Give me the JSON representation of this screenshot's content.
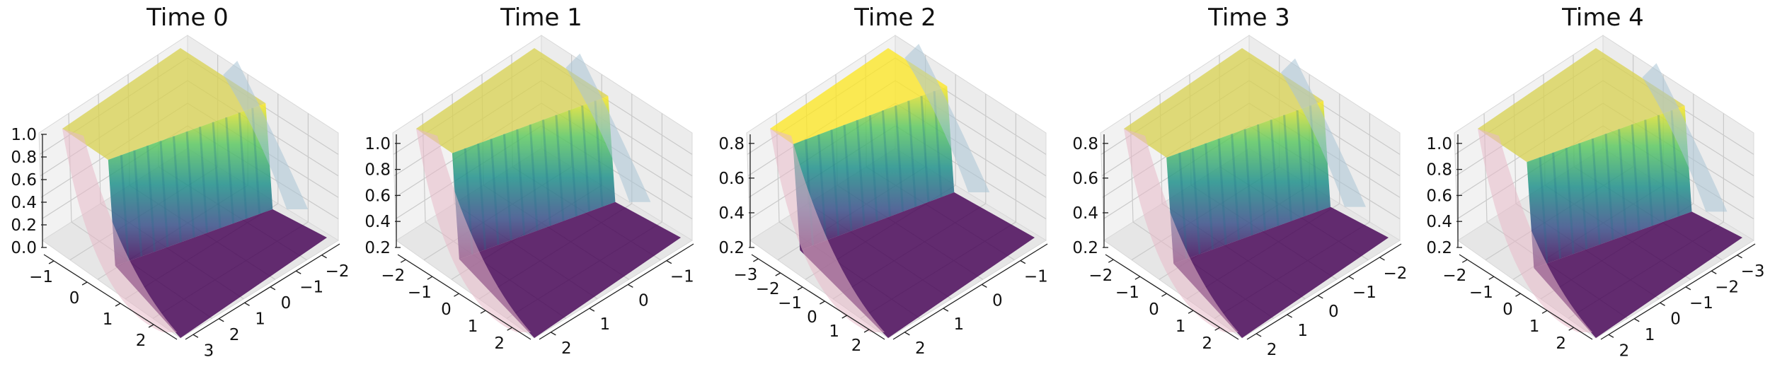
{
  "chart_data": [
    {
      "type": "surface",
      "title": "Time 0",
      "zticks": [
        "0.0",
        "0.2",
        "0.4",
        "0.6",
        "0.8",
        "1.0"
      ],
      "xticks": [
        "−1",
        "0",
        "1",
        "2"
      ],
      "yticks": [
        "−2",
        "−1",
        "0",
        "1",
        "2",
        "3"
      ],
      "front_corner": "right",
      "steps": [
        1.4,
        2.2
      ],
      "colors": {
        "low": "#440154",
        "high": "#d9d255",
        "shade": "#e8b9c9",
        "ghost": "#a9c4d6"
      }
    },
    {
      "type": "surface",
      "title": "Time 1",
      "zticks": [
        "0.2",
        "0.4",
        "0.6",
        "0.8",
        "1.0"
      ],
      "xticks": [
        "−2",
        "−1",
        "0",
        "1",
        "2"
      ],
      "yticks": [
        "−1",
        "0",
        "1",
        "2"
      ],
      "front_corner": "right",
      "steps": [
        1.1,
        1.8
      ],
      "colors": {
        "low": "#440154",
        "high": "#d9d255",
        "shade": "#e8b9c9",
        "ghost": "#a9c4d6"
      }
    },
    {
      "type": "surface",
      "title": "Time 2",
      "zticks": [
        "0.2",
        "0.4",
        "0.6",
        "0.8"
      ],
      "xticks": [
        "−3",
        "−2",
        "−1",
        "0",
        "1",
        "2"
      ],
      "yticks": [
        "−1",
        "0",
        "1",
        "2"
      ],
      "front_corner": "right",
      "steps": [
        0.7,
        1.6
      ],
      "colors": {
        "low": "#440154",
        "high": "#fde725",
        "shade": "#e8b9c9",
        "ghost": "#a9c4d6"
      }
    },
    {
      "type": "surface",
      "title": "Time 3",
      "zticks": [
        "0.2",
        "0.4",
        "0.6",
        "0.8"
      ],
      "xticks": [
        "−2",
        "−1",
        "0",
        "1",
        "2"
      ],
      "yticks": [
        "−2",
        "−1",
        "0",
        "1",
        "2"
      ],
      "front_corner": "right",
      "steps": [
        1.3,
        2.1
      ],
      "colors": {
        "low": "#440154",
        "high": "#d9d255",
        "shade": "#e8b9c9",
        "ghost": "#a9c4d6"
      }
    },
    {
      "type": "surface",
      "title": "Time 4",
      "zticks": [
        "0.2",
        "0.4",
        "0.6",
        "0.8",
        "1.0"
      ],
      "xticks": [
        "−2",
        "−1",
        "0",
        "1",
        "2"
      ],
      "yticks": [
        "−3",
        "−2",
        "−1",
        "0",
        "1",
        "2"
      ],
      "front_corner": "right",
      "steps": [
        1.5,
        2.3
      ],
      "colors": {
        "low": "#440154",
        "high": "#d9d255",
        "shade": "#e8b9c9",
        "ghost": "#a9c4d6"
      }
    }
  ]
}
